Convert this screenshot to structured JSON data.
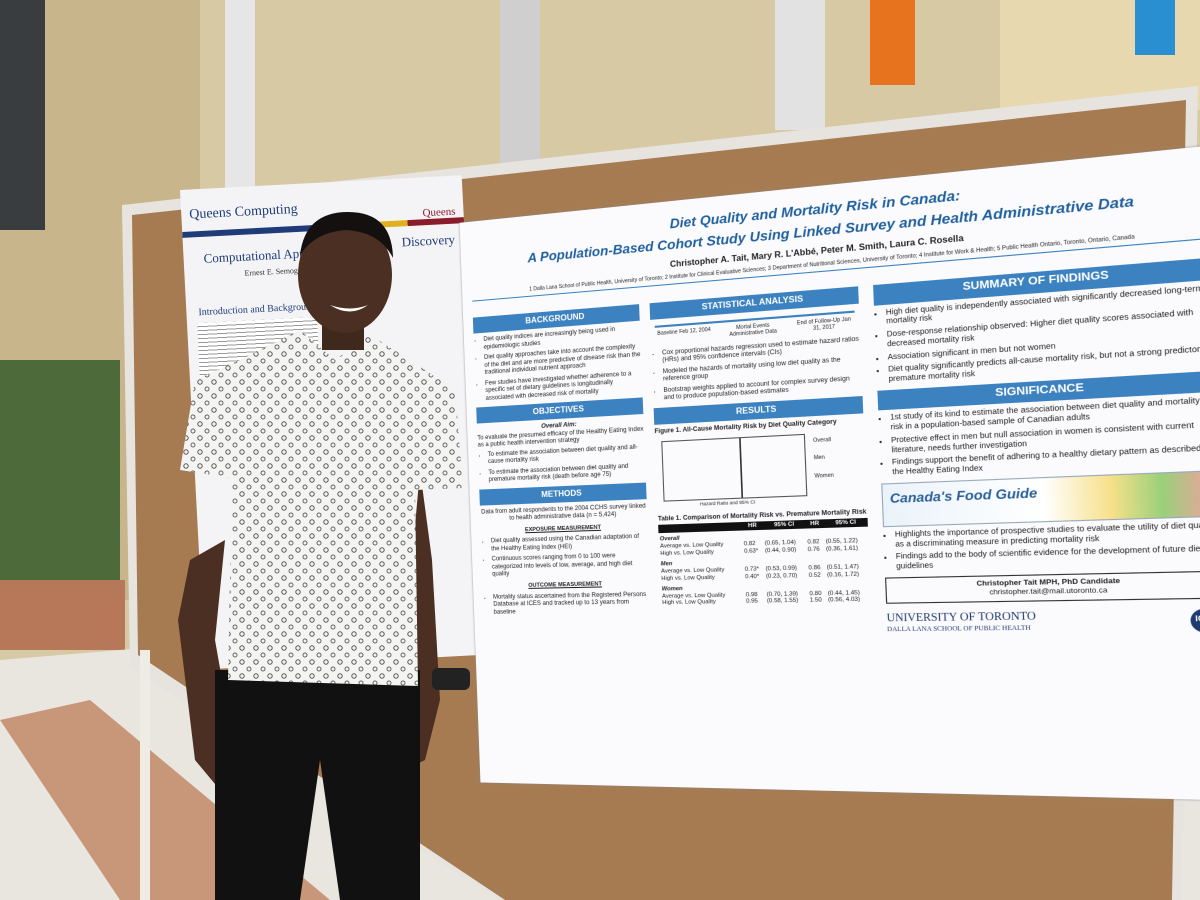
{
  "left_poster": {
    "brand": "Queens Computing",
    "crest": "Queens",
    "title": "Computational Approaches",
    "title_end": "Discovery",
    "author": "Ernest E. Semogeyan",
    "heading": "Introduction and Background"
  },
  "poster": {
    "title": "Diet Quality and Mortality Risk in Canada:",
    "subtitle": "A Population-Based Cohort Study Using Linked Survey and Health Administrative Data",
    "authors": "Christopher A. Tait, Mary R. L'Abbé, Peter M. Smith, Laura C. Rosella",
    "affiliations": "1 Dalla Lana School of Public Health, University of Toronto; 2 Institute for Clinical Evaluative Sciences; 3 Department of Nutritional Sciences, University of Toronto; 4 Institute for Work & Health; 5 Public Health Ontario, Toronto, Ontario, Canada",
    "background": {
      "heading": "Background",
      "items": [
        "Diet quality indices are increasingly being used in epidemiologic studies",
        "Diet quality approaches take into account the complexity of the diet and are more predictive of disease risk than the traditional individual nutrient approach",
        "Few studies have investigated whether adherence to a specific set of dietary guidelines is longitudinally associated with decreased risk of mortality"
      ]
    },
    "objectives": {
      "heading": "Objectives",
      "aim_label": "Overall Aim:",
      "aim": "To evaluate the presumed efficacy of the Healthy Eating Index as a public health intervention strategy",
      "items": [
        "To estimate the association between diet quality and all-cause mortality risk",
        "To estimate the association between diet quality and premature mortality risk (death before age 75)"
      ]
    },
    "methods": {
      "heading": "Methods",
      "intro": "Data from adult respondents to the 2004 CCHS survey linked to health administrative data (n = 5,424)",
      "exposure_heading": "Exposure Measurement",
      "exposure_items": [
        "Diet quality assessed using the Canadian adaptation of the Healthy Eating Index (HEI)",
        "Continuous scores ranging from 0 to 100 were categorized into levels of low, average, and high diet quality"
      ],
      "outcome_heading": "Outcome Measurement",
      "outcome_items": [
        "Mortality status ascertained from the Registered Persons Database at ICES and tracked up to 13 years from baseline"
      ]
    },
    "analysis": {
      "heading": "Statistical Analysis",
      "timeline": [
        "Baseline Feb 12, 2004",
        "Mortal Events Administrative Data",
        "End of Follow-Up Jan 31, 2017"
      ],
      "items": [
        "Cox proportional hazards regression used to estimate hazard ratios (HRs) and 95% confidence intervals (CIs)",
        "Modeled the hazards of mortality using low diet quality as the reference group",
        "Bootstrap weights applied to account for complex survey design and to produce population-based estimates"
      ]
    },
    "results": {
      "heading": "Results",
      "figure_caption": "Figure 1. All-Cause Mortality Risk by Diet Quality Category",
      "figure_axis": "Hazard Ratio and 95% CI",
      "figure_legend": [
        "Overall",
        "Men",
        "Women"
      ],
      "table_caption": "Table 1. Comparison of Mortality Risk vs. Premature Mortality Risk",
      "table_header": [
        "HR",
        "95% CI",
        "HR",
        "95% CI"
      ],
      "table_groups": [
        {
          "group": "Overall",
          "rows": [
            [
              "Average vs. Low Quality",
              "0.82",
              "(0.65, 1.04)",
              "0.82",
              "(0.55, 1.22)"
            ],
            [
              "High vs. Low Quality",
              "0.63*",
              "(0.44, 0.90)",
              "0.76",
              "(0.36, 1.61)"
            ]
          ]
        },
        {
          "group": "Men",
          "rows": [
            [
              "Average vs. Low Quality",
              "0.73*",
              "(0.53, 0.99)",
              "0.86",
              "(0.51, 1.47)"
            ],
            [
              "High vs. Low Quality",
              "0.40*",
              "(0.23, 0.70)",
              "0.52",
              "(0.16, 1.72)"
            ]
          ]
        },
        {
          "group": "Women",
          "rows": [
            [
              "Average vs. Low Quality",
              "0.98",
              "(0.70, 1.39)",
              "0.80",
              "(0.44, 1.45)"
            ],
            [
              "High vs. Low Quality",
              "0.95",
              "(0.58, 1.55)",
              "1.50",
              "(0.56, 4.03)"
            ]
          ]
        }
      ]
    },
    "findings": {
      "heading": "Summary of Findings",
      "items": [
        "High diet quality is independently associated with significantly decreased long-term mortality risk",
        "Dose-response relationship observed: Higher diet quality scores associated with decreased mortality risk",
        "Association significant in men but not women",
        "Diet quality significantly predicts all-cause mortality risk, but not a strong predictor of premature mortality risk"
      ]
    },
    "significance": {
      "heading": "Significance",
      "items": [
        "1st study of its kind to estimate the association between diet quality and mortality risk in a population-based sample of Canadian adults",
        "Protective effect in men but null association in women is consistent with current literature, needs further investigation",
        "Findings support the benefit of adhering to a healthy dietary pattern as described by the Healthy Eating Index"
      ],
      "food_guide": "Canada's Food Guide",
      "items_after": [
        "Highlights the importance of prospective studies to evaluate the utility of diet quality as a discriminating measure in predicting mortality risk",
        "Findings add to the body of scientific evidence for the development of future dietary guidelines"
      ]
    },
    "contact": {
      "name": "Christopher Tait MPH, PhD Candidate",
      "email": "christopher.tait@mail.utoronto.ca"
    },
    "logos": {
      "university": "UNIVERSITY OF TORONTO",
      "school": "DALLA LANA SCHOOL OF PUBLIC HEALTH",
      "ices": "ICES"
    }
  }
}
